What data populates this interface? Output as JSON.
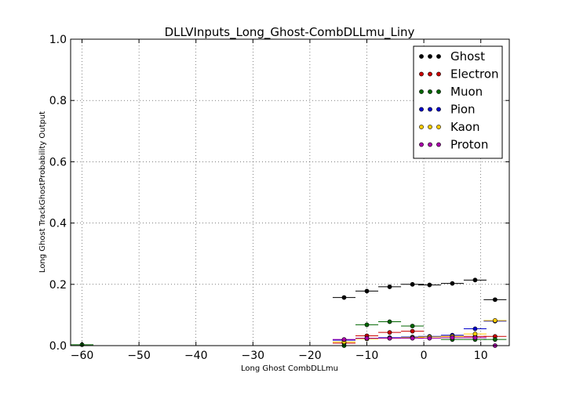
{
  "chart_data": {
    "type": "scatter",
    "title": "DLLVInputs_Long_Ghost-CombDLLmu_Liny",
    "xlabel": "Long Ghost CombDLLmu",
    "ylabel": "Long Ghost TrackGhostProbability Output",
    "xlim": [
      -62,
      15
    ],
    "ylim": [
      0.0,
      1.0
    ],
    "grid": true,
    "legend_position": "top-right",
    "x_ticks": [
      -60,
      -50,
      -40,
      -30,
      -20,
      -10,
      0,
      10
    ],
    "x_tick_labels": [
      "−60",
      "−50",
      "−40",
      "−30",
      "−20",
      "−10",
      "0",
      "10"
    ],
    "y_ticks": [
      0.0,
      0.2,
      0.4,
      0.6,
      0.8,
      1.0
    ],
    "y_tick_labels": [
      "0.0",
      "0.2",
      "0.4",
      "0.6",
      "0.8",
      "1.0"
    ],
    "series": [
      {
        "name": "Ghost",
        "color": "#000000",
        "x": [
          -14,
          -10,
          -6,
          -2,
          1,
          5,
          9,
          12.5
        ],
        "xerr": [
          2,
          2,
          2,
          2,
          2,
          2,
          2,
          2
        ],
        "y": [
          0.157,
          0.178,
          0.192,
          0.2,
          0.198,
          0.203,
          0.214,
          0.15
        ]
      },
      {
        "name": "Electron",
        "color": "#cc0000",
        "x": [
          -14,
          -10,
          -6,
          -2,
          1,
          5,
          9,
          12.5
        ],
        "xerr": [
          2,
          2,
          2,
          2,
          2,
          2,
          2,
          2
        ],
        "y": [
          0.008,
          0.032,
          0.043,
          0.047,
          0.028,
          0.03,
          0.03,
          0.03
        ]
      },
      {
        "name": "Muon",
        "color": "#006600",
        "x": [
          -60,
          -14,
          -10,
          -6,
          -2,
          1,
          5,
          9,
          12.5
        ],
        "xerr": [
          2,
          2,
          2,
          2,
          2,
          2,
          2,
          2,
          2
        ],
        "y": [
          0.003,
          0.0,
          0.068,
          0.078,
          0.064,
          0.028,
          0.02,
          0.02,
          0.02
        ]
      },
      {
        "name": "Pion",
        "color": "#0000cc",
        "x": [
          -14,
          -10,
          -6,
          -2,
          1,
          5,
          9,
          12.5
        ],
        "xerr": [
          2,
          2,
          2,
          2,
          2,
          2,
          2,
          2
        ],
        "y": [
          0.018,
          0.024,
          0.026,
          0.028,
          0.03,
          0.034,
          0.055,
          0.08
        ]
      },
      {
        "name": "Kaon",
        "color": "#ffcc00",
        "x": [
          -14,
          -10,
          -6,
          -2,
          1,
          5,
          9,
          12.5
        ],
        "xerr": [
          2,
          2,
          2,
          2,
          2,
          2,
          2,
          2
        ],
        "y": [
          0.012,
          0.022,
          0.024,
          0.026,
          0.028,
          0.03,
          0.038,
          0.082
        ]
      },
      {
        "name": "Proton",
        "color": "#aa00aa",
        "x": [
          -14,
          -10,
          -6,
          -2,
          1,
          5,
          9,
          12.5
        ],
        "xerr": [
          2,
          2,
          2,
          2,
          2,
          2,
          2,
          2
        ],
        "y": [
          0.02,
          0.024,
          0.024,
          0.024,
          0.024,
          0.026,
          0.026,
          0.0
        ]
      }
    ]
  }
}
